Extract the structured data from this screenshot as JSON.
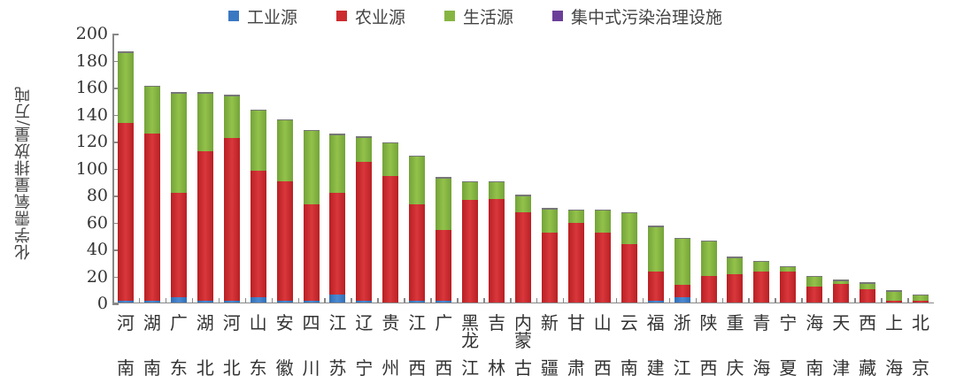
{
  "chart_data": {
    "type": "bar",
    "stacked": true,
    "title": "",
    "xlabel": "",
    "ylabel": "化学需氧量排放量/万吨",
    "ylim": [
      0,
      200
    ],
    "yticks": [
      0,
      20,
      40,
      60,
      80,
      100,
      120,
      140,
      160,
      180,
      200
    ],
    "grid": false,
    "legend_position": "top",
    "categories": [
      "河南",
      "湖南",
      "广东",
      "湖北",
      "河北",
      "山东",
      "安徽",
      "四川",
      "江苏",
      "辽宁",
      "贵州",
      "江西",
      "广西",
      "黑龙江",
      "吉林",
      "内蒙古",
      "新疆",
      "甘肃",
      "山西",
      "云南",
      "福建",
      "浙江",
      "陕西",
      "重庆",
      "青海",
      "宁夏",
      "海南",
      "天津",
      "西藏",
      "上海",
      "北京"
    ],
    "series": [
      {
        "name": "工业源",
        "color": "#3a78c2",
        "values": [
          1,
          1,
          4,
          1,
          1,
          4,
          1,
          1,
          6,
          1,
          0,
          1,
          1,
          0,
          0,
          0,
          0,
          0,
          0,
          0,
          1,
          4,
          0,
          0,
          0,
          0,
          0,
          0,
          0,
          0,
          0
        ]
      },
      {
        "name": "农业源",
        "color": "#cc2b2f",
        "values": [
          132,
          124,
          77,
          111,
          121,
          94,
          89,
          72,
          75,
          103,
          94,
          72,
          53,
          76,
          77,
          67,
          52,
          59,
          52,
          43,
          22,
          9,
          20,
          21,
          23,
          23,
          12,
          14,
          10,
          1,
          1
        ]
      },
      {
        "name": "生活源",
        "color": "#86b543",
        "values": [
          52,
          35,
          74,
          43,
          31,
          44,
          45,
          54,
          43,
          18,
          24,
          35,
          38,
          13,
          12,
          12,
          17,
          9,
          16,
          23,
          33,
          34,
          25,
          12,
          7,
          3,
          7,
          2,
          4,
          7,
          4
        ]
      },
      {
        "name": "集中式污染治理设施",
        "color": "#6b3f99",
        "values": [
          0,
          0,
          0,
          0,
          0,
          0,
          0,
          0,
          0,
          0,
          0,
          0,
          0,
          0,
          0,
          0,
          0,
          0,
          0,
          0,
          0,
          0,
          0,
          0,
          0,
          0,
          0,
          0,
          0,
          0,
          0
        ]
      }
    ]
  },
  "legend": [
    {
      "label": "工业源",
      "color": "#3a78c2"
    },
    {
      "label": "农业源",
      "color": "#cc2b2f"
    },
    {
      "label": "生活源",
      "color": "#86b543"
    },
    {
      "label": "集中式污染治理设施",
      "color": "#6b3f99"
    }
  ],
  "axis": {
    "ylabel": "化学需氧量排放量/万吨"
  }
}
